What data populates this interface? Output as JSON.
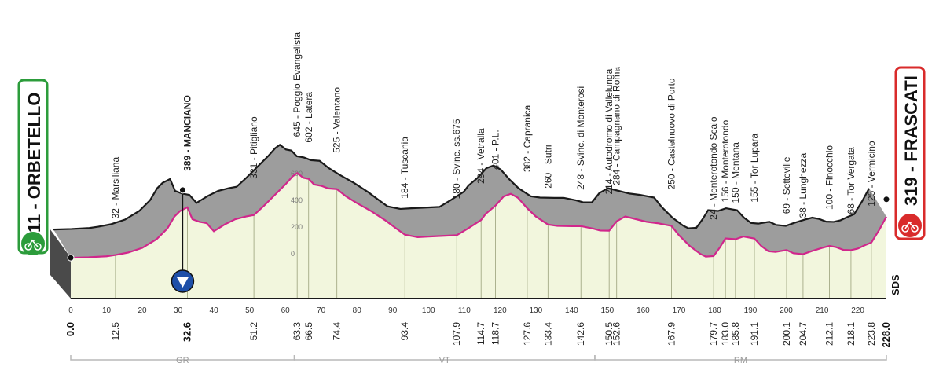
{
  "chart_data": {
    "type": "area",
    "x_range": [
      0,
      228.0
    ],
    "distance_ticks": [
      0,
      10,
      20,
      30,
      40,
      50,
      60,
      70,
      80,
      90,
      100,
      110,
      120,
      130,
      140,
      150,
      160,
      170,
      180,
      190,
      200,
      210,
      220
    ],
    "elevation_ticks": [
      0,
      200,
      400,
      600
    ],
    "start": {
      "label": "11 - ORBETELLO",
      "km": 0.0,
      "km_label": "0.0"
    },
    "finish": {
      "label": "319 - FRASCATI",
      "km": 228.0,
      "km_label": "228.0"
    },
    "intermediate_sprint": {
      "label": "389 - MANCIANO",
      "km": 32.6,
      "km_label": "32.6"
    },
    "waypoints": [
      {
        "km": 12.5,
        "km_label": "12.5",
        "label": "32 - Marsiliana"
      },
      {
        "km": 32.6,
        "km_label": "32.6",
        "label": "389 - MANCIANO"
      },
      {
        "km": 51.2,
        "km_label": "51.2",
        "label": "331 - Pitigliano"
      },
      {
        "km": 63.3,
        "km_label": "63.3",
        "label": "645 - Poggio Evangelista"
      },
      {
        "km": 66.5,
        "km_label": "66.5",
        "label": "602 - Latera"
      },
      {
        "km": 74.4,
        "km_label": "74.4",
        "label": "525 - Valentano"
      },
      {
        "km": 93.4,
        "km_label": "93.4",
        "label": "184 - Tuscania"
      },
      {
        "km": 107.9,
        "km_label": "107.9",
        "label": "180 - Svinc. ss.675"
      },
      {
        "km": 114.7,
        "km_label": "114.7",
        "label": "294 - Vetralla"
      },
      {
        "km": 118.7,
        "km_label": "118.7",
        "label": "401 - P.L."
      },
      {
        "km": 127.6,
        "km_label": "127.6",
        "label": "382 - Capranica"
      },
      {
        "km": 133.4,
        "km_label": "133.4",
        "label": "260 - Sutri"
      },
      {
        "km": 142.6,
        "km_label": "142.6",
        "label": "248 - Svinc. di Monterosi"
      },
      {
        "km": 150.5,
        "km_label": "150.5",
        "label": "214 - Autodromo di Vallelunga"
      },
      {
        "km": 152.6,
        "km_label": "152.6",
        "label": "284 - Campagnano di Roma"
      },
      {
        "km": 167.9,
        "km_label": "167.9",
        "label": "250 - Castelnuovo di Porto"
      },
      {
        "km": 179.7,
        "km_label": "179.7",
        "label": "24 - Monterotondo Scalo"
      },
      {
        "km": 183.0,
        "km_label": "183.0",
        "label": "156 - Monterotondo"
      },
      {
        "km": 185.8,
        "km_label": "185.8",
        "label": "150 - Mentana"
      },
      {
        "km": 191.1,
        "km_label": "191.1",
        "label": "155 - Tor Lupara"
      },
      {
        "km": 200.1,
        "km_label": "200.1",
        "label": "69 - Setteville"
      },
      {
        "km": 204.7,
        "km_label": "204.7",
        "label": "38 - Lunghezza"
      },
      {
        "km": 212.1,
        "km_label": "212.1",
        "label": "100 - Finocchio"
      },
      {
        "km": 218.1,
        "km_label": "218.1",
        "label": "68 - Tor Vergata"
      },
      {
        "km": 223.8,
        "km_label": "223.8",
        "label": "125 - Vermicino"
      }
    ],
    "profile": [
      [
        0,
        11
      ],
      [
        5,
        15
      ],
      [
        10,
        22
      ],
      [
        12.5,
        32
      ],
      [
        16,
        50
      ],
      [
        20,
        85
      ],
      [
        24,
        150
      ],
      [
        27,
        230
      ],
      [
        29,
        320
      ],
      [
        30.5,
        360
      ],
      [
        32.6,
        389
      ],
      [
        34,
        300
      ],
      [
        36,
        280
      ],
      [
        38,
        270
      ],
      [
        40,
        210
      ],
      [
        43,
        260
      ],
      [
        46,
        300
      ],
      [
        49,
        320
      ],
      [
        51.2,
        331
      ],
      [
        54,
        400
      ],
      [
        57,
        480
      ],
      [
        60,
        560
      ],
      [
        62,
        620
      ],
      [
        63.3,
        645
      ],
      [
        65,
        610
      ],
      [
        66.5,
        602
      ],
      [
        68,
        560
      ],
      [
        70,
        550
      ],
      [
        72,
        530
      ],
      [
        74.4,
        525
      ],
      [
        77,
        470
      ],
      [
        80,
        420
      ],
      [
        84,
        360
      ],
      [
        88,
        290
      ],
      [
        91,
        230
      ],
      [
        93.4,
        184
      ],
      [
        97,
        165
      ],
      [
        100,
        170
      ],
      [
        104,
        175
      ],
      [
        107.9,
        180
      ],
      [
        111,
        230
      ],
      [
        114.7,
        294
      ],
      [
        116,
        340
      ],
      [
        118.7,
        401
      ],
      [
        121,
        470
      ],
      [
        123,
        490
      ],
      [
        125,
        460
      ],
      [
        127.6,
        382
      ],
      [
        130,
        320
      ],
      [
        133.4,
        260
      ],
      [
        136,
        250
      ],
      [
        140,
        248
      ],
      [
        142.6,
        248
      ],
      [
        146,
        230
      ],
      [
        148,
        215
      ],
      [
        150.5,
        214
      ],
      [
        152.6,
        284
      ],
      [
        155,
        320
      ],
      [
        158,
        300
      ],
      [
        161,
        280
      ],
      [
        164,
        270
      ],
      [
        167.9,
        250
      ],
      [
        170,
        180
      ],
      [
        173,
        100
      ],
      [
        176,
        40
      ],
      [
        177.5,
        20
      ],
      [
        179.7,
        24
      ],
      [
        181.5,
        90
      ],
      [
        183,
        156
      ],
      [
        185.8,
        150
      ],
      [
        188,
        170
      ],
      [
        191.1,
        155
      ],
      [
        193,
        100
      ],
      [
        195,
        60
      ],
      [
        197,
        55
      ],
      [
        200.1,
        69
      ],
      [
        202,
        45
      ],
      [
        204.7,
        38
      ],
      [
        207,
        60
      ],
      [
        210,
        85
      ],
      [
        212.1,
        100
      ],
      [
        214,
        90
      ],
      [
        216,
        70
      ],
      [
        218.1,
        68
      ],
      [
        220,
        80
      ],
      [
        222,
        105
      ],
      [
        223.8,
        125
      ],
      [
        226,
        220
      ],
      [
        228,
        319
      ]
    ],
    "regions": [
      {
        "label": "GR",
        "from": 0,
        "to": 62.5
      },
      {
        "label": "VT",
        "from": 62.5,
        "to": 146.5
      },
      {
        "label": "RM",
        "from": 146.5,
        "to": 228
      }
    ],
    "logo_text": "SDS"
  }
}
